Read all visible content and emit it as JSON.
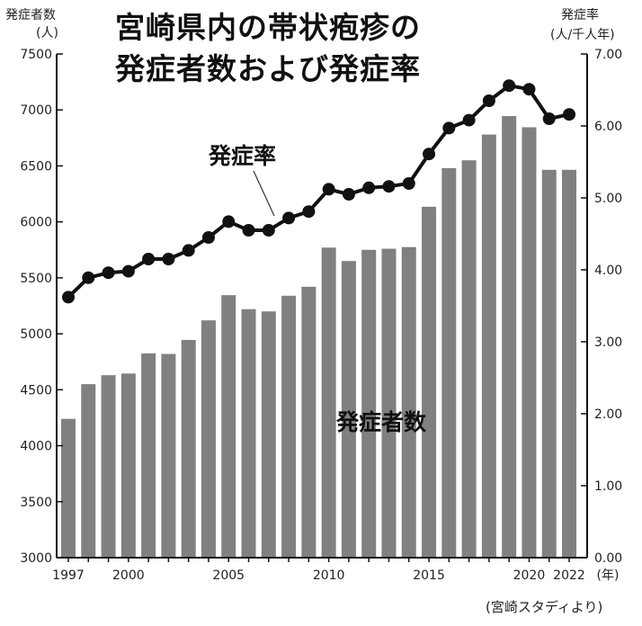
{
  "title_line1": "宮崎県内の帯状疱疹の",
  "title_line2": "発症者数および発症率",
  "left_axis_label": "発症者数",
  "left_axis_unit": "(人)",
  "right_axis_label": "発症率",
  "right_axis_unit": "(人/千人年)",
  "x_unit": "(年)",
  "source": "(宮崎スタディより)",
  "colors": {
    "bar": "#808080",
    "line": "#111111",
    "axis": "#111111"
  },
  "chart_data": {
    "type": "bar",
    "x": [
      1997,
      1998,
      1999,
      2000,
      2001,
      2002,
      2003,
      2004,
      2005,
      2006,
      2007,
      2008,
      2009,
      2010,
      2011,
      2012,
      2013,
      2014,
      2015,
      2016,
      2017,
      2018,
      2019,
      2020,
      2021,
      2022
    ],
    "x_tick_labels": [
      "1997",
      "2000",
      "2005",
      "2010",
      "2015",
      "2020",
      "2022"
    ],
    "series": [
      {
        "name": "発症者数",
        "type": "bar",
        "axis": "left",
        "values": [
          4240,
          4550,
          4630,
          4645,
          4825,
          4820,
          4945,
          5120,
          5345,
          5220,
          5200,
          5340,
          5420,
          5770,
          5650,
          5750,
          5760,
          5775,
          6135,
          6480,
          6550,
          6780,
          6945,
          6845,
          6465,
          6465
        ]
      },
      {
        "name": "発症率",
        "type": "line",
        "axis": "right",
        "values": [
          3.62,
          3.89,
          3.96,
          3.98,
          4.15,
          4.15,
          4.27,
          4.45,
          4.67,
          4.55,
          4.55,
          4.72,
          4.81,
          5.12,
          5.05,
          5.14,
          5.16,
          5.2,
          5.61,
          5.97,
          6.08,
          6.35,
          6.56,
          6.51,
          6.1,
          6.16
        ]
      }
    ],
    "left_axis": {
      "min": 3000,
      "max": 7500,
      "ticks": [
        "3000",
        "3500",
        "4000",
        "4500",
        "5000",
        "5500",
        "6000",
        "6500",
        "7000",
        "7500"
      ]
    },
    "right_axis": {
      "min": 0,
      "max": 7,
      "ticks": [
        "0.00",
        "1.00",
        "2.00",
        "3.00",
        "4.00",
        "5.00",
        "6.00",
        "7.00"
      ]
    },
    "grid": false,
    "annotations": [
      "発症率",
      "発症者数"
    ]
  }
}
